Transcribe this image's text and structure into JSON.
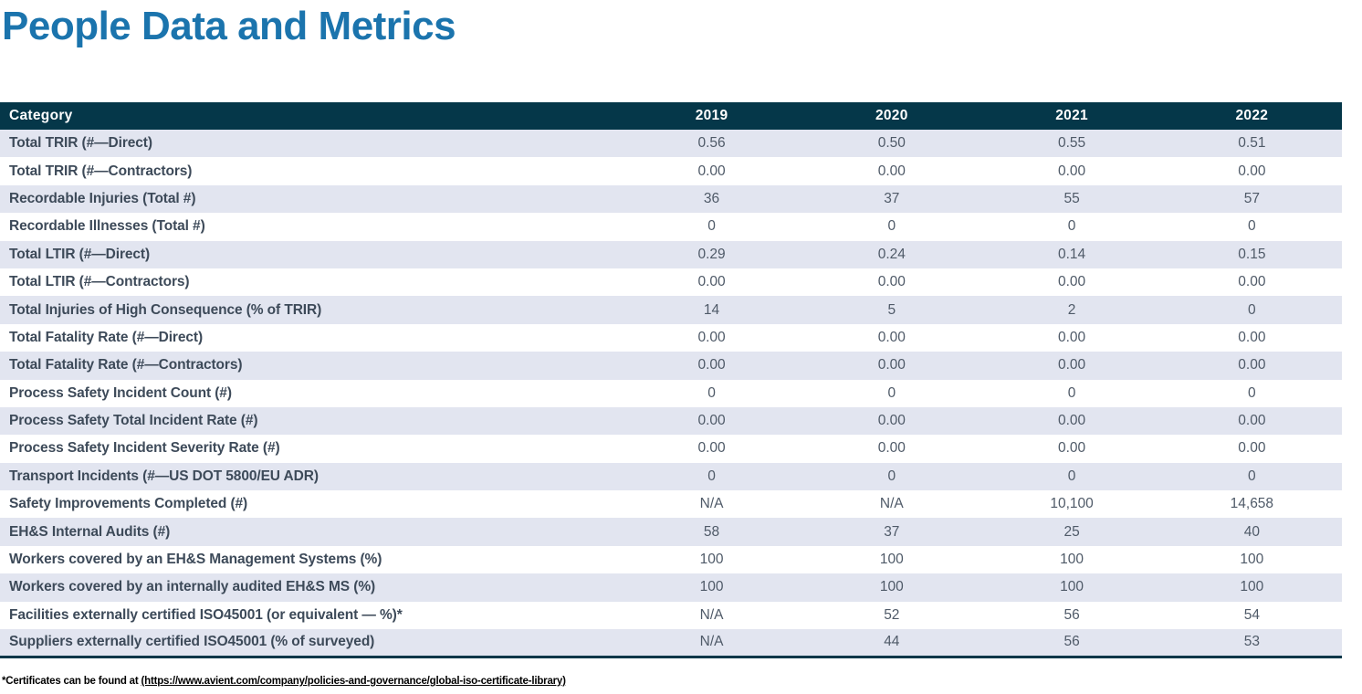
{
  "page": {
    "title": "People Data and Metrics"
  },
  "table": {
    "columns": [
      "Category",
      "2019",
      "2020",
      "2021",
      "2022"
    ],
    "rows": [
      {
        "label": "Total TRIR (#—Direct)",
        "values": [
          "0.56",
          "0.50",
          "0.55",
          "0.51"
        ]
      },
      {
        "label": "Total TRIR (#—Contractors)",
        "values": [
          "0.00",
          "0.00",
          "0.00",
          "0.00"
        ]
      },
      {
        "label": "Recordable Injuries (Total #)",
        "values": [
          "36",
          "37",
          "55",
          "57"
        ]
      },
      {
        "label": "Recordable Illnesses (Total #)",
        "values": [
          "0",
          "0",
          "0",
          "0"
        ]
      },
      {
        "label": "Total LTIR (#—Direct)",
        "values": [
          "0.29",
          "0.24",
          "0.14",
          "0.15"
        ]
      },
      {
        "label": "Total LTIR (#—Contractors)",
        "values": [
          "0.00",
          "0.00",
          "0.00",
          "0.00"
        ]
      },
      {
        "label": "Total Injuries of High Consequence (% of TRIR)",
        "values": [
          "14",
          "5",
          "2",
          "0"
        ]
      },
      {
        "label": "Total Fatality Rate (#—Direct)",
        "values": [
          "0.00",
          "0.00",
          "0.00",
          "0.00"
        ]
      },
      {
        "label": "Total Fatality Rate (#—Contractors)",
        "values": [
          "0.00",
          "0.00",
          "0.00",
          "0.00"
        ]
      },
      {
        "label": "Process Safety Incident Count (#)",
        "values": [
          "0",
          "0",
          "0",
          "0"
        ]
      },
      {
        "label": "Process Safety Total Incident Rate (#)",
        "values": [
          "0.00",
          "0.00",
          "0.00",
          "0.00"
        ]
      },
      {
        "label": "Process Safety Incident Severity Rate (#)",
        "values": [
          "0.00",
          "0.00",
          "0.00",
          "0.00"
        ]
      },
      {
        "label": "Transport Incidents (#—US DOT 5800/EU ADR)",
        "values": [
          "0",
          "0",
          "0",
          "0"
        ]
      },
      {
        "label": "Safety Improvements Completed (#)",
        "values": [
          "N/A",
          "N/A",
          "10,100",
          "14,658"
        ]
      },
      {
        "label": "EH&S Internal Audits (#)",
        "values": [
          "58",
          "37",
          "25",
          "40"
        ]
      },
      {
        "label": "Workers covered by an EH&S Management Systems (%)",
        "values": [
          "100",
          "100",
          "100",
          "100"
        ]
      },
      {
        "label": "Workers covered by an internally audited EH&S MS (%)",
        "values": [
          "100",
          "100",
          "100",
          "100"
        ]
      },
      {
        "label": "Facilities externally certified ISO45001 (or equivalent — %)*",
        "values": [
          "N/A",
          "52",
          "56",
          "54"
        ]
      },
      {
        "label": "Suppliers externally certified ISO45001 (% of surveyed)",
        "values": [
          "N/A",
          "44",
          "56",
          "53"
        ]
      }
    ]
  },
  "footnote": {
    "prefix": "*Certificates can be found at ",
    "link": "(https://www.avient.com/company/policies-and-governance/global-iso-certificate-library)"
  },
  "colors": {
    "title": "#1b74ad",
    "header_bg": "#053749",
    "row_alt_bg": "#e2e5f0",
    "label_text": "#3d4a59",
    "value_text": "#4f5a68"
  }
}
